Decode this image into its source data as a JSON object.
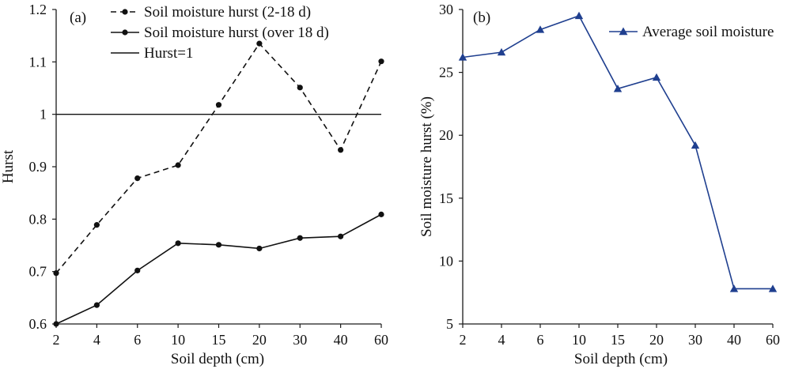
{
  "colors": {
    "axis": "#1a1a1a",
    "panel_a_line": "#111111",
    "panel_b_line": "#1f3f8f"
  },
  "chart_data": [
    {
      "panel": "(a)",
      "type": "line",
      "categories": [
        "2",
        "4",
        "6",
        "10",
        "15",
        "20",
        "30",
        "40",
        "60"
      ],
      "xlabel": "Soil depth (cm)",
      "ylabel": "Hurst",
      "ylim": [
        0.6,
        1.2
      ],
      "yticks": [
        "0.6",
        "0.7",
        "0.8",
        "0.9",
        "1",
        "1.1",
        "1.2"
      ],
      "grid": false,
      "legend_position": "top-left",
      "series": [
        {
          "name": "Soil moisture hurst (2-18 d)",
          "style": "dashed",
          "marker": "circle",
          "values": [
            0.697,
            0.789,
            0.878,
            0.903,
            1.018,
            1.135,
            1.051,
            0.932,
            1.101
          ]
        },
        {
          "name": "Soil moisture hurst (over 18 d)",
          "style": "solid",
          "marker": "circle",
          "values": [
            0.6,
            0.636,
            0.702,
            0.754,
            0.751,
            0.744,
            0.764,
            0.767,
            0.809
          ]
        },
        {
          "name": "Hurst=1",
          "style": "solid",
          "marker": "none",
          "values": [
            1,
            1,
            1,
            1,
            1,
            1,
            1,
            1,
            1
          ]
        }
      ]
    },
    {
      "panel": "(b)",
      "type": "line",
      "categories": [
        "2",
        "4",
        "6",
        "10",
        "15",
        "20",
        "30",
        "40",
        "60"
      ],
      "xlabel": "Soil depth (cm)",
      "ylabel": "Soil moisture hurst (%)",
      "ylim": [
        5,
        30
      ],
      "yticks": [
        "5",
        "10",
        "15",
        "20",
        "25",
        "30"
      ],
      "grid": false,
      "legend_position": "top-right",
      "series": [
        {
          "name": "Average soil moisture",
          "style": "solid",
          "marker": "triangle",
          "values": [
            26.2,
            26.6,
            28.4,
            29.5,
            23.7,
            24.6,
            19.2,
            7.8,
            7.8
          ]
        }
      ]
    }
  ]
}
